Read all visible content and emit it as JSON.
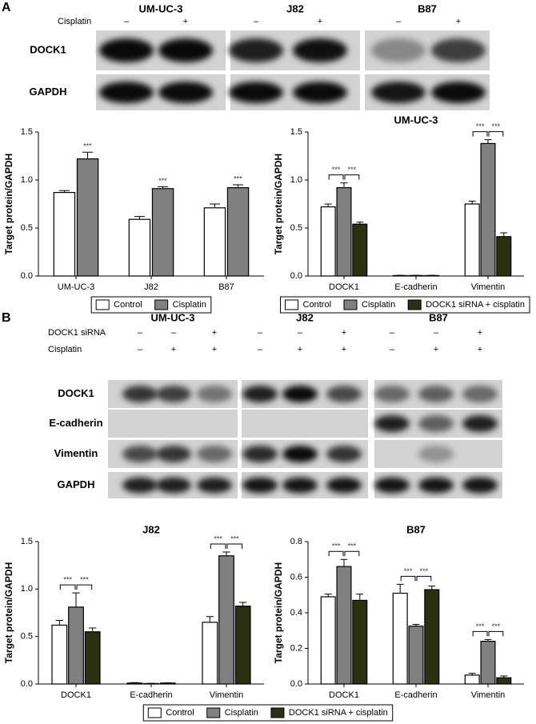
{
  "panels": [
    "A",
    "B"
  ],
  "blot_a": {
    "cell_lines": [
      "UM-UC-3",
      "J82",
      "B87"
    ],
    "condition": "Cisplatin",
    "signs": [
      "–",
      "+"
    ],
    "proteins": [
      "DOCK1",
      "GAPDH"
    ]
  },
  "blot_b": {
    "cell_lines": [
      "UM-UC-3",
      "J82",
      "B87"
    ],
    "conditions": [
      {
        "label": "DOCK1 siRNA",
        "signs": [
          "–",
          "–",
          "+"
        ]
      },
      {
        "label": "Cisplatin",
        "signs": [
          "–",
          "+",
          "+"
        ]
      }
    ],
    "proteins": [
      "DOCK1",
      "E-cadherin",
      "Vimentin",
      "GAPDH"
    ]
  },
  "chart_data": [
    {
      "type": "bar",
      "ylabel": "Target protein/GAPDH",
      "categories": [
        "UM-UC-3",
        "J82",
        "B87"
      ],
      "series": [
        {
          "name": "Control",
          "color": "#ffffff",
          "values": [
            0.87,
            0.59,
            0.71
          ],
          "errors": [
            0.02,
            0.03,
            0.04
          ]
        },
        {
          "name": "Cisplatin",
          "color": "#808080",
          "values": [
            1.22,
            0.91,
            0.92
          ],
          "errors": [
            0.07,
            0.02,
            0.03
          ]
        }
      ],
      "ylim": [
        0,
        1.5
      ],
      "yticks": [
        {
          "value": 0,
          "label": "0.0"
        },
        0.5,
        {
          "value": 1,
          "label": "1.0"
        },
        1.5
      ],
      "annotations": [
        {
          "category": 0,
          "series": 1,
          "label": "***"
        },
        {
          "category": 1,
          "series": 1,
          "label": "***"
        },
        {
          "category": 2,
          "series": 1,
          "label": "***"
        }
      ],
      "legend": "bottom"
    },
    {
      "type": "bar",
      "title": "UM-UC-3",
      "ylabel": "Target protein/GAPDH",
      "categories": [
        "DOCK1",
        "E-cadherin",
        "Vimentin"
      ],
      "series": [
        {
          "name": "Control",
          "color": "#ffffff",
          "values": [
            0.72,
            0.005,
            0.75
          ],
          "errors": [
            0.03,
            0.002,
            0.03
          ]
        },
        {
          "name": "Cisplatin",
          "color": "#808080",
          "values": [
            0.92,
            0.005,
            1.38
          ],
          "errors": [
            0.05,
            0.002,
            0.04
          ]
        },
        {
          "name": "DOCK1 siRNA + cisplatin",
          "color": "#2b3011",
          "values": [
            0.54,
            0.005,
            0.41
          ],
          "errors": [
            0.02,
            0.002,
            0.04
          ]
        }
      ],
      "ylim": [
        0,
        1.5
      ],
      "yticks": [
        {
          "value": 0,
          "label": "0.0"
        },
        0.5,
        {
          "value": 1,
          "label": "1.0"
        },
        1.5
      ],
      "significance": [
        {
          "category": 0,
          "from": 0,
          "to": 1,
          "label": "***"
        },
        {
          "category": 0,
          "from": 1,
          "to": 2,
          "label": "***"
        },
        {
          "category": 2,
          "from": 0,
          "to": 1,
          "label": "***"
        },
        {
          "category": 2,
          "from": 1,
          "to": 2,
          "label": "***"
        }
      ],
      "legend": "bottom"
    },
    {
      "type": "bar",
      "title": "J82",
      "ylabel": "Target protein/GAPDH",
      "categories": [
        "DOCK1",
        "E-cadherin",
        "Vimentin"
      ],
      "series": [
        {
          "name": "Control",
          "color": "#ffffff",
          "values": [
            0.62,
            0.01,
            0.65
          ],
          "errors": [
            0.05,
            0.005,
            0.06
          ]
        },
        {
          "name": "Cisplatin",
          "color": "#808080",
          "values": [
            0.81,
            0.005,
            1.35
          ],
          "errors": [
            0.15,
            0.002,
            0.04
          ]
        },
        {
          "name": "DOCK1 siRNA + cisplatin",
          "color": "#2b3011",
          "values": [
            0.55,
            0.01,
            0.82
          ],
          "errors": [
            0.04,
            0.003,
            0.04
          ]
        }
      ],
      "ylim": [
        0,
        1.5
      ],
      "yticks": [
        {
          "value": 0,
          "label": "0.0"
        },
        0.5,
        {
          "value": 1,
          "label": "1.0"
        },
        1.5
      ],
      "significance": [
        {
          "category": 0,
          "from": 0,
          "to": 1,
          "label": "***"
        },
        {
          "category": 0,
          "from": 1,
          "to": 2,
          "label": "***"
        },
        {
          "category": 2,
          "from": 0,
          "to": 1,
          "label": "***"
        },
        {
          "category": 2,
          "from": 1,
          "to": 2,
          "label": "***"
        }
      ],
      "legend": "bottom-center"
    },
    {
      "type": "bar",
      "title": "B87",
      "ylabel": "Target protein/GAPDH",
      "categories": [
        "DOCK1",
        "E-cadherin",
        "Vimentin"
      ],
      "series": [
        {
          "name": "Control",
          "color": "#ffffff",
          "values": [
            0.49,
            0.51,
            0.05
          ],
          "errors": [
            0.015,
            0.05,
            0.01
          ]
        },
        {
          "name": "Cisplatin",
          "color": "#808080",
          "values": [
            0.66,
            0.325,
            0.24
          ],
          "errors": [
            0.04,
            0.01,
            0.01
          ]
        },
        {
          "name": "DOCK1 siRNA + cisplatin",
          "color": "#2b3011",
          "values": [
            0.47,
            0.53,
            0.035
          ],
          "errors": [
            0.035,
            0.02,
            0.01
          ]
        }
      ],
      "ylim": [
        0,
        0.8
      ],
      "yticks": [
        {
          "value": 0,
          "label": "0.0"
        },
        0.2,
        0.4,
        0.6,
        0.8
      ],
      "significance": [
        {
          "category": 0,
          "from": 0,
          "to": 1,
          "label": "***"
        },
        {
          "category": 0,
          "from": 1,
          "to": 2,
          "label": "***"
        },
        {
          "category": 1,
          "from": 0,
          "to": 1,
          "label": "***"
        },
        {
          "category": 1,
          "from": 1,
          "to": 2,
          "label": "***"
        },
        {
          "category": 2,
          "from": 0,
          "to": 1,
          "label": "***"
        },
        {
          "category": 2,
          "from": 1,
          "to": 2,
          "label": "***"
        }
      ]
    }
  ]
}
